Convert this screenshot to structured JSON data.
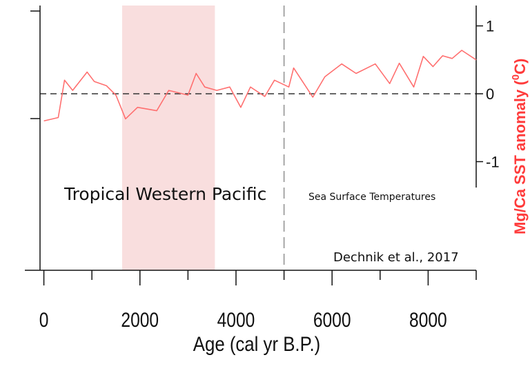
{
  "chart_data": {
    "type": "line",
    "xlabel": "Age (cal yr B.P.)",
    "ylabel_main": "Mg/Ca SST anomaly (",
    "ylabel_sup": "0",
    "ylabel_end": "C)",
    "xlim": [
      -80,
      9000
    ],
    "ylim": [
      -2.6,
      1.3
    ],
    "x_ticks": [
      0,
      2000,
      4000,
      6000,
      8000
    ],
    "x_tick_labels": [
      "0",
      "2000",
      "4000",
      "6000",
      "8000"
    ],
    "x_minor_ticks": [
      1000,
      3000,
      5000,
      7000,
      9000
    ],
    "y_ticks": [
      1,
      0,
      -1
    ],
    "y_tick_labels": [
      "1",
      "0",
      "-1"
    ],
    "highlight_band": [
      1630,
      3560
    ],
    "highlight_color": "#f9dede",
    "reference_line_y": 0,
    "vertical_line_x": 5000,
    "line_color": "#ff6f6f",
    "series": [
      {
        "x": [
          0,
          300,
          430,
          600,
          900,
          1050,
          1300,
          1500,
          1700,
          1950,
          2350,
          2600,
          3000,
          3170,
          3350,
          3600,
          3870,
          4100,
          4300,
          4600,
          4800,
          5100,
          5200,
          5600,
          5850,
          6200,
          6500,
          6900,
          7200,
          7400,
          7700,
          7900,
          8100,
          8300,
          8500,
          8700,
          9000
        ],
        "y": [
          -0.4,
          -0.35,
          0.2,
          0.05,
          0.32,
          0.18,
          0.12,
          -0.02,
          -0.37,
          -0.2,
          -0.25,
          0.05,
          -0.02,
          0.3,
          0.1,
          0.05,
          0.1,
          -0.2,
          0.1,
          -0.04,
          0.2,
          0.1,
          0.38,
          -0.05,
          0.25,
          0.44,
          0.3,
          0.44,
          0.15,
          0.45,
          0.1,
          0.55,
          0.4,
          0.56,
          0.52,
          0.64,
          0.5
        ]
      }
    ]
  },
  "annotations": {
    "region": "Tropical Western Pacific",
    "measure": "Sea Surface Temperatures",
    "citation": "Dechnik et al., 2017"
  }
}
